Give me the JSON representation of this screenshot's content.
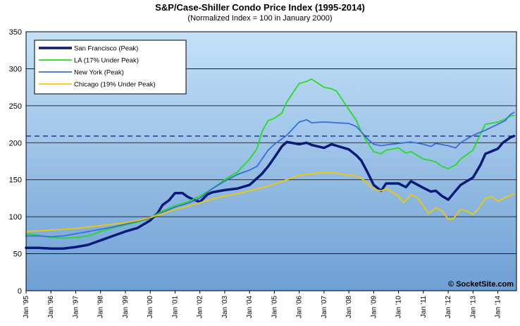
{
  "chart_data": {
    "type": "line",
    "title": "S&P/Case-Shiller Condo Price Index (1995-2014)",
    "subtitle": "(Normalized Index = 100 in January 2000)",
    "watermark": "© SocketSite.com",
    "xlabel": "",
    "ylabel": "",
    "ylim": [
      0,
      350
    ],
    "yticks": [
      0,
      50,
      100,
      150,
      200,
      250,
      300,
      350
    ],
    "xticks": [
      "Jan '95",
      "Jan '96",
      "Jan '97",
      "Jan '98",
      "Jan '99",
      "Jan '00",
      "Jan '01",
      "Jan '02",
      "Jan '03",
      "Jan '04",
      "Jan '05",
      "Jan '06",
      "Jan '07",
      "Jan '08",
      "Jan '09",
      "Jan '10",
      "Jan '11",
      "Jan '12",
      "Jan '13",
      "Jan '14"
    ],
    "x_range": [
      1995.0,
      2014.75
    ],
    "grid": true,
    "legend_position": "top-left",
    "reference_line": 209,
    "series": [
      {
        "name": "San Francisco (Peak)",
        "color": "#0a1a7a",
        "width": 3.5,
        "points": [
          [
            1995.0,
            58
          ],
          [
            1995.5,
            58
          ],
          [
            1996.0,
            57
          ],
          [
            1996.5,
            57
          ],
          [
            1997.0,
            59
          ],
          [
            1997.5,
            62
          ],
          [
            1998.0,
            68
          ],
          [
            1998.5,
            74
          ],
          [
            1999.0,
            80
          ],
          [
            1999.5,
            85
          ],
          [
            2000.0,
            95
          ],
          [
            2000.3,
            105
          ],
          [
            2000.5,
            116
          ],
          [
            2000.75,
            122
          ],
          [
            2001.0,
            132
          ],
          [
            2001.3,
            132
          ],
          [
            2001.5,
            127
          ],
          [
            2001.75,
            123
          ],
          [
            2002.0,
            120
          ],
          [
            2002.3,
            130
          ],
          [
            2002.5,
            133
          ],
          [
            2003.0,
            136
          ],
          [
            2003.5,
            138
          ],
          [
            2004.0,
            143
          ],
          [
            2004.5,
            158
          ],
          [
            2004.75,
            168
          ],
          [
            2005.0,
            180
          ],
          [
            2005.3,
            195
          ],
          [
            2005.5,
            201
          ],
          [
            2006.0,
            198
          ],
          [
            2006.3,
            200
          ],
          [
            2006.5,
            197
          ],
          [
            2007.0,
            193
          ],
          [
            2007.3,
            198
          ],
          [
            2007.5,
            196
          ],
          [
            2008.0,
            191
          ],
          [
            2008.3,
            183
          ],
          [
            2008.5,
            176
          ],
          [
            2008.75,
            160
          ],
          [
            2009.0,
            143
          ],
          [
            2009.3,
            135
          ],
          [
            2009.5,
            145
          ],
          [
            2010.0,
            145
          ],
          [
            2010.3,
            140
          ],
          [
            2010.5,
            148
          ],
          [
            2011.0,
            139
          ],
          [
            2011.3,
            134
          ],
          [
            2011.5,
            135
          ],
          [
            2011.75,
            128
          ],
          [
            2012.0,
            123
          ],
          [
            2012.3,
            135
          ],
          [
            2012.5,
            143
          ],
          [
            2013.0,
            153
          ],
          [
            2013.3,
            170
          ],
          [
            2013.5,
            185
          ],
          [
            2014.0,
            192
          ],
          [
            2014.2,
            200
          ],
          [
            2014.5,
            207
          ],
          [
            2014.65,
            209
          ]
        ]
      },
      {
        "name": "LA (17% Under Peak)",
        "color": "#22dd22",
        "width": 1.8,
        "points": [
          [
            1995.0,
            77
          ],
          [
            1995.5,
            75
          ],
          [
            1996.0,
            72
          ],
          [
            1996.5,
            71
          ],
          [
            1997.0,
            72
          ],
          [
            1997.5,
            74
          ],
          [
            1998.0,
            80
          ],
          [
            1998.5,
            85
          ],
          [
            1999.0,
            89
          ],
          [
            1999.5,
            93
          ],
          [
            2000.0,
            98
          ],
          [
            2000.5,
            108
          ],
          [
            2001.0,
            115
          ],
          [
            2001.5,
            120
          ],
          [
            2002.0,
            128
          ],
          [
            2002.5,
            138
          ],
          [
            2003.0,
            150
          ],
          [
            2003.5,
            160
          ],
          [
            2004.0,
            178
          ],
          [
            2004.3,
            192
          ],
          [
            2004.5,
            215
          ],
          [
            2004.75,
            230
          ],
          [
            2005.0,
            233
          ],
          [
            2005.3,
            240
          ],
          [
            2005.5,
            255
          ],
          [
            2006.0,
            280
          ],
          [
            2006.3,
            283
          ],
          [
            2006.5,
            286
          ],
          [
            2007.0,
            275
          ],
          [
            2007.3,
            273
          ],
          [
            2007.5,
            270
          ],
          [
            2008.0,
            245
          ],
          [
            2008.3,
            230
          ],
          [
            2008.5,
            215
          ],
          [
            2008.75,
            200
          ],
          [
            2009.0,
            188
          ],
          [
            2009.3,
            185
          ],
          [
            2009.5,
            190
          ],
          [
            2010.0,
            193
          ],
          [
            2010.3,
            186
          ],
          [
            2010.5,
            188
          ],
          [
            2011.0,
            178
          ],
          [
            2011.3,
            176
          ],
          [
            2011.5,
            174
          ],
          [
            2011.75,
            168
          ],
          [
            2012.0,
            165
          ],
          [
            2012.3,
            170
          ],
          [
            2012.5,
            178
          ],
          [
            2013.0,
            190
          ],
          [
            2013.3,
            212
          ],
          [
            2013.5,
            225
          ],
          [
            2014.0,
            228
          ],
          [
            2014.3,
            232
          ],
          [
            2014.5,
            236
          ],
          [
            2014.65,
            237
          ]
        ]
      },
      {
        "name": "New York (Peak)",
        "color": "#3a6ddd",
        "width": 1.8,
        "points": [
          [
            1995.0,
            74
          ],
          [
            1995.5,
            74
          ],
          [
            1996.0,
            73
          ],
          [
            1996.5,
            74
          ],
          [
            1997.0,
            77
          ],
          [
            1997.5,
            80
          ],
          [
            1998.0,
            83
          ],
          [
            1998.5,
            86
          ],
          [
            1999.0,
            90
          ],
          [
            1999.5,
            94
          ],
          [
            2000.0,
            98
          ],
          [
            2000.5,
            106
          ],
          [
            2001.0,
            113
          ],
          [
            2001.5,
            118
          ],
          [
            2002.0,
            125
          ],
          [
            2002.5,
            138
          ],
          [
            2003.0,
            148
          ],
          [
            2003.5,
            157
          ],
          [
            2004.0,
            163
          ],
          [
            2004.3,
            168
          ],
          [
            2004.5,
            178
          ],
          [
            2004.75,
            190
          ],
          [
            2005.0,
            198
          ],
          [
            2005.5,
            210
          ],
          [
            2006.0,
            228
          ],
          [
            2006.3,
            231
          ],
          [
            2006.5,
            227
          ],
          [
            2007.0,
            228
          ],
          [
            2007.5,
            227
          ],
          [
            2008.0,
            226
          ],
          [
            2008.3,
            222
          ],
          [
            2008.5,
            215
          ],
          [
            2008.75,
            205
          ],
          [
            2009.0,
            198
          ],
          [
            2009.3,
            196
          ],
          [
            2009.5,
            197
          ],
          [
            2010.0,
            199
          ],
          [
            2010.5,
            201
          ],
          [
            2011.0,
            198
          ],
          [
            2011.3,
            195
          ],
          [
            2011.5,
            199
          ],
          [
            2012.0,
            196
          ],
          [
            2012.3,
            193
          ],
          [
            2012.5,
            200
          ],
          [
            2013.0,
            210
          ],
          [
            2013.5,
            217
          ],
          [
            2014.0,
            225
          ],
          [
            2014.3,
            230
          ],
          [
            2014.5,
            238
          ],
          [
            2014.65,
            241
          ]
        ]
      },
      {
        "name": "Chicago (19% Under Peak)",
        "color": "#f0c800",
        "width": 1.8,
        "points": [
          [
            1995.0,
            80
          ],
          [
            1995.5,
            81
          ],
          [
            1996.0,
            82
          ],
          [
            1996.5,
            83
          ],
          [
            1997.0,
            84
          ],
          [
            1997.5,
            86
          ],
          [
            1998.0,
            88
          ],
          [
            1998.5,
            90
          ],
          [
            1999.0,
            92
          ],
          [
            1999.5,
            95
          ],
          [
            2000.0,
            99
          ],
          [
            2000.5,
            104
          ],
          [
            2001.0,
            110
          ],
          [
            2001.5,
            114
          ],
          [
            2002.0,
            119
          ],
          [
            2002.5,
            124
          ],
          [
            2003.0,
            128
          ],
          [
            2003.5,
            131
          ],
          [
            2004.0,
            135
          ],
          [
            2004.5,
            139
          ],
          [
            2005.0,
            144
          ],
          [
            2005.5,
            150
          ],
          [
            2006.0,
            156
          ],
          [
            2006.5,
            158
          ],
          [
            2007.0,
            160
          ],
          [
            2007.5,
            159
          ],
          [
            2008.0,
            156
          ],
          [
            2008.3,
            155
          ],
          [
            2008.5,
            152
          ],
          [
            2008.75,
            145
          ],
          [
            2009.0,
            137
          ],
          [
            2009.3,
            135
          ],
          [
            2009.5,
            138
          ],
          [
            2010.0,
            128
          ],
          [
            2010.2,
            119
          ],
          [
            2010.5,
            130
          ],
          [
            2010.75,
            126
          ],
          [
            2011.0,
            115
          ],
          [
            2011.2,
            104
          ],
          [
            2011.5,
            112
          ],
          [
            2011.75,
            108
          ],
          [
            2012.0,
            97
          ],
          [
            2012.2,
            97
          ],
          [
            2012.5,
            110
          ],
          [
            2012.75,
            108
          ],
          [
            2013.0,
            103
          ],
          [
            2013.2,
            110
          ],
          [
            2013.5,
            125
          ],
          [
            2013.75,
            127
          ],
          [
            2014.0,
            121
          ],
          [
            2014.2,
            124
          ],
          [
            2014.5,
            129
          ],
          [
            2014.65,
            131
          ]
        ]
      }
    ]
  }
}
